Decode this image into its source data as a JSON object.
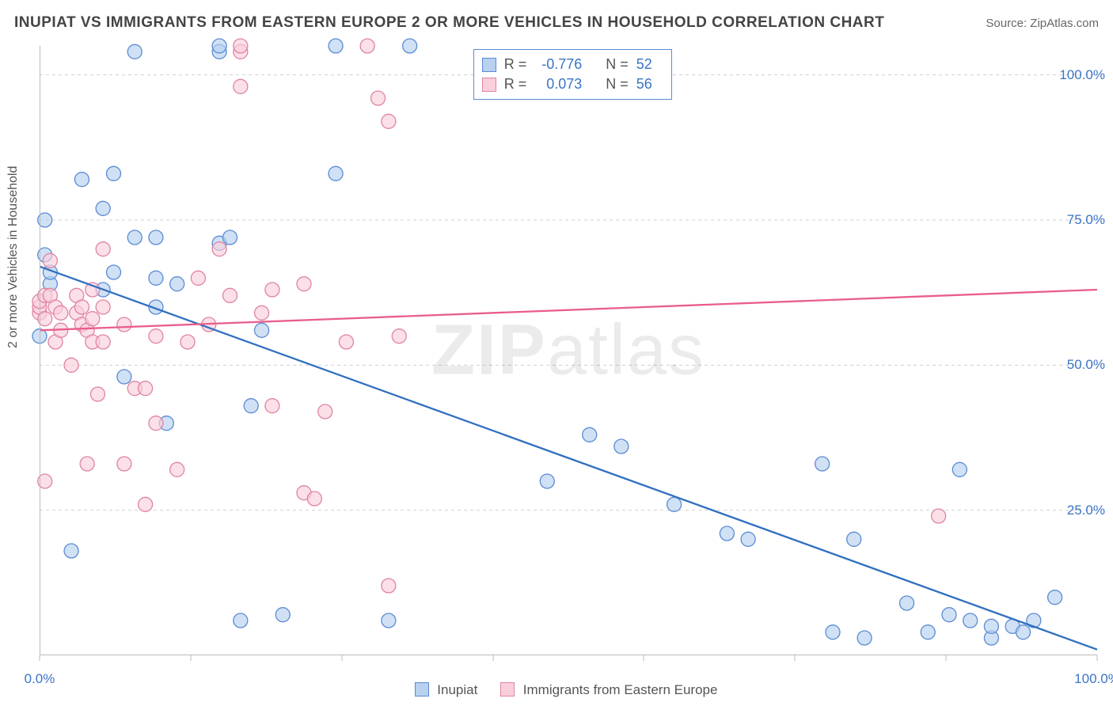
{
  "title": "INUPIAT VS IMMIGRANTS FROM EASTERN EUROPE 2 OR MORE VEHICLES IN HOUSEHOLD CORRELATION CHART",
  "source_label": "Source: ",
  "source_name": "ZipAtlas.com",
  "ylabel": "2 or more Vehicles in Household",
  "watermark_a": "ZIP",
  "watermark_b": "atlas",
  "colors": {
    "blue_fill": "#b7d1ef",
    "blue_stroke": "#5b8bd4",
    "pink_fill": "#f9cfdb",
    "pink_stroke": "#e083a2",
    "blue_line": "#2f6fc0",
    "pink_line": "#e95d8f",
    "grid": "#d0d0d0",
    "axis_text": "#3b74c5"
  },
  "chart": {
    "type": "scatter",
    "xlim": [
      0,
      100
    ],
    "ylim": [
      0,
      105
    ],
    "x_ticks": [
      0,
      100
    ],
    "x_tick_labels": [
      "0.0%",
      "100.0%"
    ],
    "x_minor_ticks": [
      14.3,
      28.6,
      42.9,
      57.1,
      71.4,
      85.7
    ],
    "y_ticks": [
      25,
      50,
      75,
      100
    ],
    "y_tick_labels": [
      "25.0%",
      "50.0%",
      "75.0%",
      "100.0%"
    ],
    "marker_radius": 9,
    "line_width": 2.3
  },
  "series": [
    {
      "name": "Inupiat",
      "color_fill_key": "blue_fill",
      "color_stroke_key": "blue_stroke",
      "line_color_key": "blue_line",
      "R": "-0.776",
      "N": "52",
      "regression": {
        "x0": 0,
        "y0": 67,
        "x1": 100,
        "y1": 1
      },
      "points": [
        [
          0,
          55
        ],
        [
          0.5,
          69
        ],
        [
          0.5,
          75
        ],
        [
          1,
          64
        ],
        [
          1,
          66
        ],
        [
          3,
          18
        ],
        [
          4,
          82
        ],
        [
          6,
          63
        ],
        [
          6,
          77
        ],
        [
          7,
          66
        ],
        [
          7,
          83
        ],
        [
          8,
          48
        ],
        [
          9,
          72
        ],
        [
          9,
          104
        ],
        [
          11,
          72
        ],
        [
          11,
          60
        ],
        [
          11,
          65
        ],
        [
          12,
          40
        ],
        [
          13,
          64
        ],
        [
          17,
          71
        ],
        [
          17,
          104
        ],
        [
          17,
          105
        ],
        [
          18,
          72
        ],
        [
          19,
          6
        ],
        [
          20,
          43
        ],
        [
          21,
          56
        ],
        [
          23,
          7
        ],
        [
          28,
          105
        ],
        [
          28,
          83
        ],
        [
          33,
          6
        ],
        [
          35,
          105
        ],
        [
          48,
          30
        ],
        [
          52,
          38
        ],
        [
          55,
          36
        ],
        [
          60,
          26
        ],
        [
          65,
          21
        ],
        [
          67,
          20
        ],
        [
          74,
          33
        ],
        [
          75,
          4
        ],
        [
          77,
          20
        ],
        [
          78,
          3
        ],
        [
          82,
          9
        ],
        [
          84,
          4
        ],
        [
          86,
          7
        ],
        [
          87,
          32
        ],
        [
          88,
          6
        ],
        [
          90,
          3
        ],
        [
          90,
          5
        ],
        [
          92,
          5
        ],
        [
          93,
          4
        ],
        [
          94,
          6
        ],
        [
          96,
          10
        ]
      ]
    },
    {
      "name": "Immigrants from Eastern Europe",
      "color_fill_key": "pink_fill",
      "color_stroke_key": "pink_stroke",
      "line_color_key": "pink_line",
      "R": "0.073",
      "N": "56",
      "regression": {
        "x0": 0,
        "y0": 56,
        "x1": 100,
        "y1": 63
      },
      "points": [
        [
          0,
          59
        ],
        [
          0,
          60
        ],
        [
          0,
          61
        ],
        [
          0.5,
          62
        ],
        [
          0.5,
          58
        ],
        [
          0.5,
          30
        ],
        [
          1,
          62
        ],
        [
          1,
          68
        ],
        [
          1.5,
          60
        ],
        [
          1.5,
          54
        ],
        [
          2,
          56
        ],
        [
          2,
          59
        ],
        [
          3,
          50
        ],
        [
          3.5,
          62
        ],
        [
          3.5,
          59
        ],
        [
          4,
          57
        ],
        [
          4,
          60
        ],
        [
          4.5,
          56
        ],
        [
          4.5,
          33
        ],
        [
          5,
          54
        ],
        [
          5,
          58
        ],
        [
          5,
          63
        ],
        [
          5.5,
          45
        ],
        [
          6,
          54
        ],
        [
          6,
          60
        ],
        [
          6,
          70
        ],
        [
          8,
          33
        ],
        [
          8,
          57
        ],
        [
          9,
          46
        ],
        [
          10,
          46
        ],
        [
          10,
          26
        ],
        [
          11,
          55
        ],
        [
          11,
          40
        ],
        [
          13,
          32
        ],
        [
          14,
          54
        ],
        [
          15,
          65
        ],
        [
          16,
          57
        ],
        [
          17,
          70
        ],
        [
          18,
          62
        ],
        [
          19,
          98
        ],
        [
          19,
          104
        ],
        [
          19,
          105
        ],
        [
          21,
          59
        ],
        [
          22,
          63
        ],
        [
          22,
          43
        ],
        [
          25,
          28
        ],
        [
          25,
          64
        ],
        [
          26,
          27
        ],
        [
          27,
          42
        ],
        [
          29,
          54
        ],
        [
          31,
          105
        ],
        [
          32,
          96
        ],
        [
          33,
          92
        ],
        [
          33,
          12
        ],
        [
          34,
          55
        ],
        [
          85,
          24
        ]
      ]
    }
  ],
  "bottom_legend": {
    "label_a": "Inupiat",
    "label_b": "Immigrants from Eastern Europe"
  },
  "stats_legend": {
    "r_label": "R =",
    "n_label": "N ="
  }
}
